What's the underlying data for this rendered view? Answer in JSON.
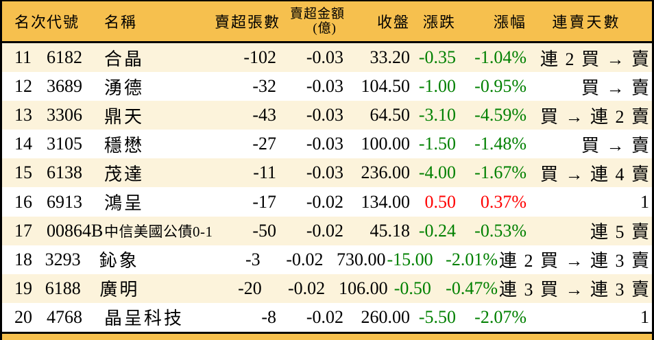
{
  "colors": {
    "header_bg": "#F6C04E",
    "row_alt_bg": "#FCF3DB",
    "row_bg": "#FFFFFF",
    "up_text": "#FF0000",
    "down_text": "#008000",
    "border": "#000000"
  },
  "table": {
    "columns": [
      {
        "key": "rank",
        "label": "名次"
      },
      {
        "key": "code",
        "label": "代號"
      },
      {
        "key": "name",
        "label": "名稱"
      },
      {
        "key": "sell_volume",
        "label": "賣超張數"
      },
      {
        "key": "sell_amount",
        "label": "賣超金額",
        "label2": "(億)"
      },
      {
        "key": "close",
        "label": "收盤"
      },
      {
        "key": "change",
        "label": "漲跌"
      },
      {
        "key": "change_pct",
        "label": "漲幅"
      },
      {
        "key": "streak",
        "label": "連賣天數"
      }
    ],
    "rows": [
      {
        "rank": "11",
        "code": "6182",
        "name": "合晶",
        "sell_volume": "-102",
        "sell_amount": "-0.03",
        "close": "33.20",
        "change": "-0.35",
        "change_pct": "-1.04%",
        "streak": "連 2 買 → 賣",
        "trend": "down"
      },
      {
        "rank": "12",
        "code": "3689",
        "name": "湧德",
        "sell_volume": "-32",
        "sell_amount": "-0.03",
        "close": "104.50",
        "change": "-1.00",
        "change_pct": "-0.95%",
        "streak": "買 → 賣",
        "trend": "down"
      },
      {
        "rank": "13",
        "code": "3306",
        "name": "鼎天",
        "sell_volume": "-43",
        "sell_amount": "-0.03",
        "close": "64.50",
        "change": "-3.10",
        "change_pct": "-4.59%",
        "streak": "買 → 連 2 賣",
        "trend": "down"
      },
      {
        "rank": "14",
        "code": "3105",
        "name": "穩懋",
        "sell_volume": "-27",
        "sell_amount": "-0.03",
        "close": "100.00",
        "change": "-1.50",
        "change_pct": "-1.48%",
        "streak": "買 → 賣",
        "trend": "down"
      },
      {
        "rank": "15",
        "code": "6138",
        "name": "茂達",
        "sell_volume": "-11",
        "sell_amount": "-0.03",
        "close": "236.00",
        "change": "-4.00",
        "change_pct": "-1.67%",
        "streak": "買 → 連 4 賣",
        "trend": "down"
      },
      {
        "rank": "16",
        "code": "6913",
        "name": "鴻呈",
        "sell_volume": "-17",
        "sell_amount": "-0.02",
        "close": "134.00",
        "change": "0.50",
        "change_pct": "0.37%",
        "streak": "1",
        "trend": "up"
      },
      {
        "rank": "17",
        "code": "00864B",
        "name": "中信美國公債0-1",
        "sell_volume": "-50",
        "sell_amount": "-0.02",
        "close": "45.18",
        "change": "-0.24",
        "change_pct": "-0.53%",
        "streak": "連 5 賣",
        "trend": "down"
      },
      {
        "rank": "18",
        "code": "3293",
        "name": "鈊象",
        "sell_volume": "-3",
        "sell_amount": "-0.02",
        "close": "730.00",
        "change": "-15.00",
        "change_pct": "-2.01%",
        "streak": "連 2 買 → 連 3 賣",
        "trend": "down"
      },
      {
        "rank": "19",
        "code": "6188",
        "name": "廣明",
        "sell_volume": "-20",
        "sell_amount": "-0.02",
        "close": "106.00",
        "change": "-0.50",
        "change_pct": "-0.47%",
        "streak": "連 3 買 → 連 3 賣",
        "trend": "down"
      },
      {
        "rank": "20",
        "code": "4768",
        "name": "晶呈科技",
        "sell_volume": "-8",
        "sell_amount": "-0.02",
        "close": "260.00",
        "change": "-5.50",
        "change_pct": "-2.07%",
        "streak": "1",
        "trend": "down"
      }
    ]
  }
}
